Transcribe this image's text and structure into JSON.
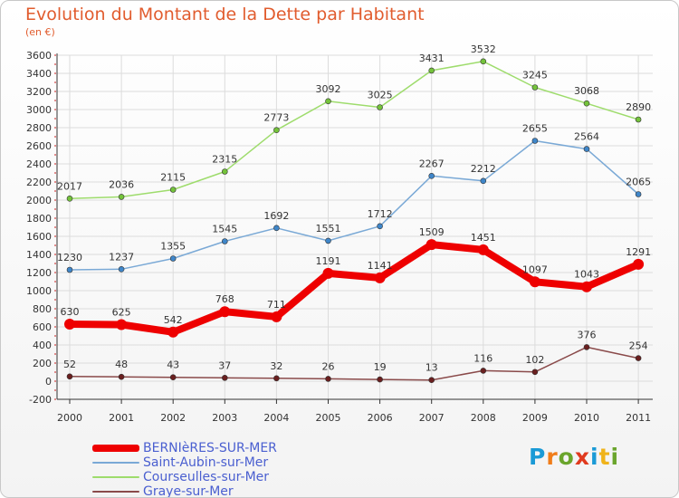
{
  "title": "Evolution du Montant de la Dette par Habitant",
  "unit": "(en €)",
  "logo": [
    "P",
    "r",
    "o",
    "x",
    "i",
    "t",
    "i"
  ],
  "logo_colors": [
    "#1a9ad6",
    "#f07d1a",
    "#6aa52c",
    "#e03a1e",
    "#1a9ad6",
    "#f0b31a",
    "#6aa52c"
  ],
  "chart_data": {
    "type": "line",
    "x": [
      "2000",
      "2001",
      "2002",
      "2003",
      "2004",
      "2005",
      "2006",
      "2007",
      "2008",
      "2009",
      "2010",
      "2011"
    ],
    "ylim": [
      -200,
      3600
    ],
    "yticks": [
      -200,
      0,
      200,
      400,
      600,
      800,
      1000,
      1200,
      1400,
      1600,
      1800,
      2000,
      2200,
      2400,
      2600,
      2800,
      3000,
      3200,
      3400,
      3600
    ],
    "grid": true,
    "legend_position": "bottom-left",
    "series": [
      {
        "name": "BERNIèRES-SUR-MER",
        "color": "#ee0000",
        "marker": "#ee0000",
        "width": 8,
        "values": [
          630,
          625,
          542,
          768,
          711,
          1191,
          1141,
          1509,
          1451,
          1097,
          1043,
          1291
        ]
      },
      {
        "name": "Saint-Aubin-sur-Mer",
        "color": "#7aa9d6",
        "marker": "#3f86c9",
        "width": 1.5,
        "values": [
          1230,
          1237,
          1355,
          1545,
          1692,
          1551,
          1712,
          2267,
          2212,
          2655,
          2564,
          2065
        ]
      },
      {
        "name": "Courseulles-sur-Mer",
        "color": "#9edc6c",
        "marker": "#74c33b",
        "width": 1.5,
        "values": [
          2017,
          2036,
          2115,
          2315,
          2773,
          3092,
          3025,
          3431,
          3532,
          3245,
          3068,
          2890
        ]
      },
      {
        "name": "Graye-sur-Mer",
        "color": "#8a4a4a",
        "marker": "#6a1f1f",
        "width": 1.5,
        "values": [
          52,
          48,
          43,
          37,
          32,
          26,
          19,
          13,
          116,
          102,
          376,
          254
        ]
      }
    ]
  }
}
